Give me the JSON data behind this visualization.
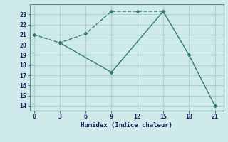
{
  "line1_x": [
    0,
    3,
    6,
    9,
    12,
    15
  ],
  "line1_y": [
    21,
    20.2,
    21.1,
    23.3,
    23.3,
    23.3
  ],
  "line2_x": [
    3,
    9,
    15,
    18,
    21
  ],
  "line2_y": [
    20.2,
    17.3,
    23.3,
    19.0,
    14.0
  ],
  "color": "#2e7d6e",
  "bg_color": "#ceeaea",
  "grid_color": "#b0d0d0",
  "xlabel": "Humidex (Indice chaleur)",
  "xlim": [
    -0.5,
    22
  ],
  "ylim": [
    13.5,
    24.0
  ],
  "xticks": [
    0,
    3,
    6,
    9,
    12,
    15,
    18,
    21
  ],
  "yticks": [
    14,
    15,
    16,
    17,
    18,
    19,
    20,
    21,
    22,
    23
  ],
  "markersize": 3,
  "linewidth": 1.0
}
